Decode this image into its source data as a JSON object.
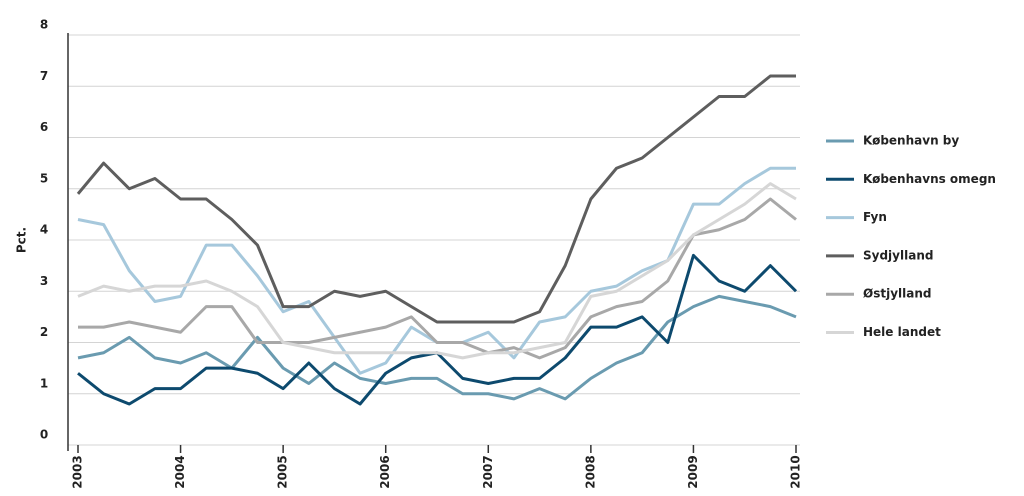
{
  "chart_data": {
    "type": "line",
    "ylabel": "Pct.",
    "x": [
      2003,
      2003.25,
      2003.5,
      2003.75,
      2004,
      2004.25,
      2004.5,
      2004.75,
      2005,
      2005.25,
      2005.5,
      2005.75,
      2006,
      2006.25,
      2006.5,
      2006.75,
      2007,
      2007.25,
      2007.5,
      2007.75,
      2008,
      2008.25,
      2008.5,
      2008.75,
      2009,
      2009.25,
      2009.5,
      2009.75,
      2010
    ],
    "xlim": [
      2003,
      2010
    ],
    "xticks": [
      2003,
      2004,
      2005,
      2006,
      2007,
      2008,
      2009,
      2010
    ],
    "ylim": [
      0,
      8
    ],
    "yticks": [
      0,
      1,
      2,
      3,
      4,
      5,
      6,
      7,
      8
    ],
    "grid": true,
    "legend": "right",
    "series": [
      {
        "name": "København by",
        "color": "#6a9bb0",
        "values": [
          1.7,
          1.8,
          2.1,
          1.7,
          1.6,
          1.8,
          1.5,
          2.1,
          1.5,
          1.2,
          1.6,
          1.3,
          1.2,
          1.3,
          1.3,
          1.0,
          1.0,
          0.9,
          1.1,
          0.9,
          1.3,
          1.6,
          1.8,
          2.4,
          2.7,
          2.9,
          2.8,
          2.7,
          2.5
        ]
      },
      {
        "name": "Københavns omegn",
        "color": "#0d4a6e",
        "values": [
          1.4,
          1.0,
          0.8,
          1.1,
          1.1,
          1.5,
          1.5,
          1.4,
          1.1,
          1.6,
          1.1,
          0.8,
          1.4,
          1.7,
          1.8,
          1.3,
          1.2,
          1.3,
          1.3,
          1.7,
          2.3,
          2.3,
          2.5,
          2.0,
          3.7,
          3.2,
          3.0,
          3.5,
          3.0
        ]
      },
      {
        "name": "Fyn",
        "color": "#a6c8dc",
        "values": [
          4.4,
          4.3,
          3.4,
          2.8,
          2.9,
          3.9,
          3.9,
          3.3,
          2.6,
          2.8,
          2.1,
          1.4,
          1.6,
          2.3,
          2.0,
          2.0,
          2.2,
          1.7,
          2.4,
          2.5,
          3.0,
          3.1,
          3.4,
          3.6,
          4.7,
          4.7,
          5.1,
          5.4,
          5.4
        ]
      },
      {
        "name": "Sydjylland",
        "color": "#5e5e5e",
        "values": [
          4.9,
          5.5,
          5.0,
          5.2,
          4.8,
          4.8,
          4.4,
          3.9,
          2.7,
          2.7,
          3.0,
          2.9,
          3.0,
          2.7,
          2.4,
          2.4,
          2.4,
          2.4,
          2.6,
          3.5,
          4.8,
          5.4,
          5.6,
          6.0,
          6.4,
          6.8,
          6.8,
          7.2,
          7.2
        ]
      },
      {
        "name": "Østjylland",
        "color": "#a8a8a8",
        "values": [
          2.3,
          2.3,
          2.4,
          2.3,
          2.2,
          2.7,
          2.7,
          2.0,
          2.0,
          2.0,
          2.1,
          2.2,
          2.3,
          2.5,
          2.0,
          2.0,
          1.8,
          1.9,
          1.7,
          1.9,
          2.5,
          2.7,
          2.8,
          3.2,
          4.1,
          4.2,
          4.4,
          4.8,
          4.4
        ]
      },
      {
        "name": "Hele landet",
        "color": "#d6d6d6",
        "values": [
          2.9,
          3.1,
          3.0,
          3.1,
          3.1,
          3.2,
          3.0,
          2.7,
          2.0,
          1.9,
          1.8,
          1.8,
          1.8,
          1.8,
          1.8,
          1.7,
          1.8,
          1.8,
          1.9,
          2.0,
          2.9,
          3.0,
          3.3,
          3.6,
          4.1,
          4.4,
          4.7,
          5.1,
          4.8
        ]
      }
    ]
  }
}
